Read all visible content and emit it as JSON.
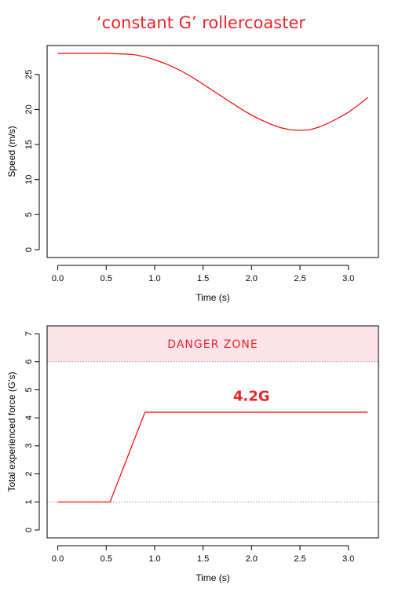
{
  "figure": {
    "title": "‘constant G’ rollercoaster",
    "colors": {
      "line": "#ff0000",
      "zone_fill": "#fde4e9",
      "title": "#e8262a",
      "ref_line": "#999999"
    }
  },
  "chart_data": [
    {
      "type": "line",
      "title": "",
      "xlabel": "Time (s)",
      "ylabel": "Speed (m/s)",
      "xlim": [
        0.0,
        3.2
      ],
      "ylim": [
        0,
        28
      ],
      "xticks": [
        "0.0",
        "0.5",
        "1.0",
        "1.5",
        "2.0",
        "2.5",
        "3.0"
      ],
      "yticks": [
        "0",
        "5",
        "10",
        "15",
        "20",
        "25"
      ],
      "grid": false,
      "series": [
        {
          "x": [
            0.0,
            0.5,
            0.7,
            0.8,
            0.9,
            1.0,
            1.1,
            1.2,
            1.3,
            1.4,
            1.5,
            1.6,
            1.7,
            1.8,
            1.9,
            2.0,
            2.1,
            2.2,
            2.3,
            2.4,
            2.5,
            2.6,
            2.7,
            2.8,
            2.9,
            3.0,
            3.1,
            3.2
          ],
          "y": [
            28.0,
            28.0,
            27.9,
            27.8,
            27.5,
            27.1,
            26.6,
            26.0,
            25.3,
            24.5,
            23.6,
            22.7,
            21.8,
            20.9,
            20.0,
            19.2,
            18.5,
            17.9,
            17.4,
            17.1,
            17.0,
            17.1,
            17.5,
            18.1,
            18.8,
            19.6,
            20.6,
            21.7
          ]
        }
      ]
    },
    {
      "type": "line",
      "title": "",
      "xlabel": "Time (s)",
      "ylabel": "Total experienced force (G's)",
      "xlim": [
        0.0,
        3.2
      ],
      "ylim": [
        0,
        7
      ],
      "xticks": [
        "0.0",
        "0.5",
        "1.0",
        "1.5",
        "2.0",
        "2.5",
        "3.0"
      ],
      "yticks": [
        "0",
        "1",
        "2",
        "3",
        "4",
        "5",
        "6",
        "7"
      ],
      "grid": false,
      "reference_lines": [
        1,
        6
      ],
      "danger_zone": {
        "from": 6,
        "to": 7.3,
        "label": "DANGER ZONE"
      },
      "annotation": {
        "text": "4.2G",
        "x": 2.0,
        "y": 4.6
      },
      "series": [
        {
          "x": [
            0.0,
            0.54,
            0.9,
            3.2
          ],
          "y": [
            1.0,
            1.0,
            4.2,
            4.2
          ]
        }
      ]
    }
  ]
}
